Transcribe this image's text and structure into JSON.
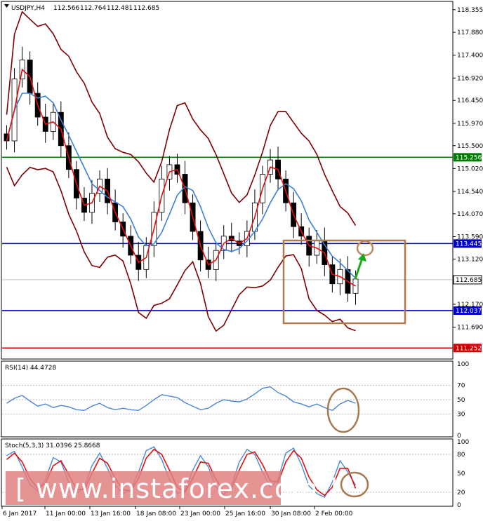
{
  "chart_data": [
    {
      "type": "candlestick",
      "symbol_label": "USDJPY,H4",
      "ohlc_readout": [
        "112.566",
        "112.764",
        "112.481",
        "112.685"
      ],
      "price_ticks": [
        "118.355",
        "117.880",
        "117.400",
        "116.920",
        "116.450",
        "115.970",
        "115.500",
        "115.020",
        "114.540",
        "114.070",
        "113.590",
        "113.120",
        "112.170",
        "111.690"
      ],
      "ylim": [
        111.05,
        118.5
      ],
      "current_price": "112.685",
      "levels": [
        {
          "label": "115.256",
          "value": 115.256,
          "color": "#007a00"
        },
        {
          "label": "113.445",
          "value": 113.445,
          "color": "#0000cc"
        },
        {
          "label": "112.037",
          "value": 112.037,
          "color": "#0000cc"
        },
        {
          "label": "111.252",
          "value": 111.252,
          "color": "#cc0000"
        }
      ],
      "close_path": [
        115.6,
        116.9,
        117.3,
        116.6,
        116.1,
        115.8,
        116.2,
        115.5,
        115.0,
        114.4,
        114.1,
        114.5,
        114.8,
        114.3,
        113.9,
        113.6,
        113.2,
        112.9,
        113.4,
        114.1,
        114.8,
        115.1,
        114.9,
        114.3,
        113.7,
        113.1,
        112.9,
        113.3,
        113.6,
        113.5,
        113.4,
        113.7,
        114.3,
        114.9,
        115.2,
        114.8,
        114.3,
        113.8,
        113.6,
        113.2,
        113.5,
        113.0,
        112.6,
        112.9,
        112.4,
        112.7
      ],
      "x_ticks": [
        "6 Jan 2017",
        "11 Jan 00:00",
        "13 Jan 16:00",
        "18 Jan 08:00",
        "23 Jan 00:00",
        "25 Jan 16:00",
        "30 Jan 08:00",
        "2 Feb 00:00"
      ],
      "watermark": "[ www.instaforex.com ]"
    },
    {
      "type": "line",
      "label": "RSI(14) 44.4728",
      "ticks": [
        "100",
        "70",
        "50",
        "30",
        "0"
      ],
      "ylim": [
        0,
        100
      ],
      "values": [
        45,
        52,
        56,
        48,
        41,
        44,
        39,
        42,
        40,
        36,
        35,
        41,
        45,
        39,
        36,
        38,
        36,
        35,
        42,
        50,
        57,
        55,
        53,
        46,
        41,
        36,
        38,
        45,
        50,
        48,
        47,
        51,
        58,
        66,
        68,
        60,
        55,
        47,
        44,
        40,
        44,
        39,
        35,
        44,
        49,
        45
      ]
    },
    {
      "type": "line",
      "label": "Stoch(5,3,3) 31.0396 25.8668",
      "ticks": [
        "100",
        "80",
        "50",
        "20",
        "0"
      ],
      "ylim": [
        0,
        100
      ],
      "series": [
        {
          "values": [
            78,
            85,
            60,
            32,
            22,
            40,
            75,
            68,
            36,
            18,
            28,
            62,
            82,
            58,
            30,
            18,
            24,
            52,
            86,
            92,
            72,
            40,
            18,
            22,
            55,
            78,
            60,
            28,
            16,
            30,
            68,
            88,
            80,
            52,
            28,
            40,
            82,
            90,
            64,
            30,
            18,
            12,
            36,
            70,
            52,
            31
          ]
        },
        {
          "values": [
            72,
            82,
            68,
            42,
            26,
            34,
            62,
            70,
            48,
            25,
            24,
            50,
            74,
            66,
            42,
            24,
            22,
            42,
            74,
            88,
            80,
            55,
            28,
            20,
            42,
            68,
            66,
            40,
            22,
            25,
            55,
            80,
            84,
            64,
            38,
            36,
            68,
            86,
            74,
            44,
            24,
            15,
            28,
            58,
            58,
            26
          ]
        }
      ]
    }
  ]
}
